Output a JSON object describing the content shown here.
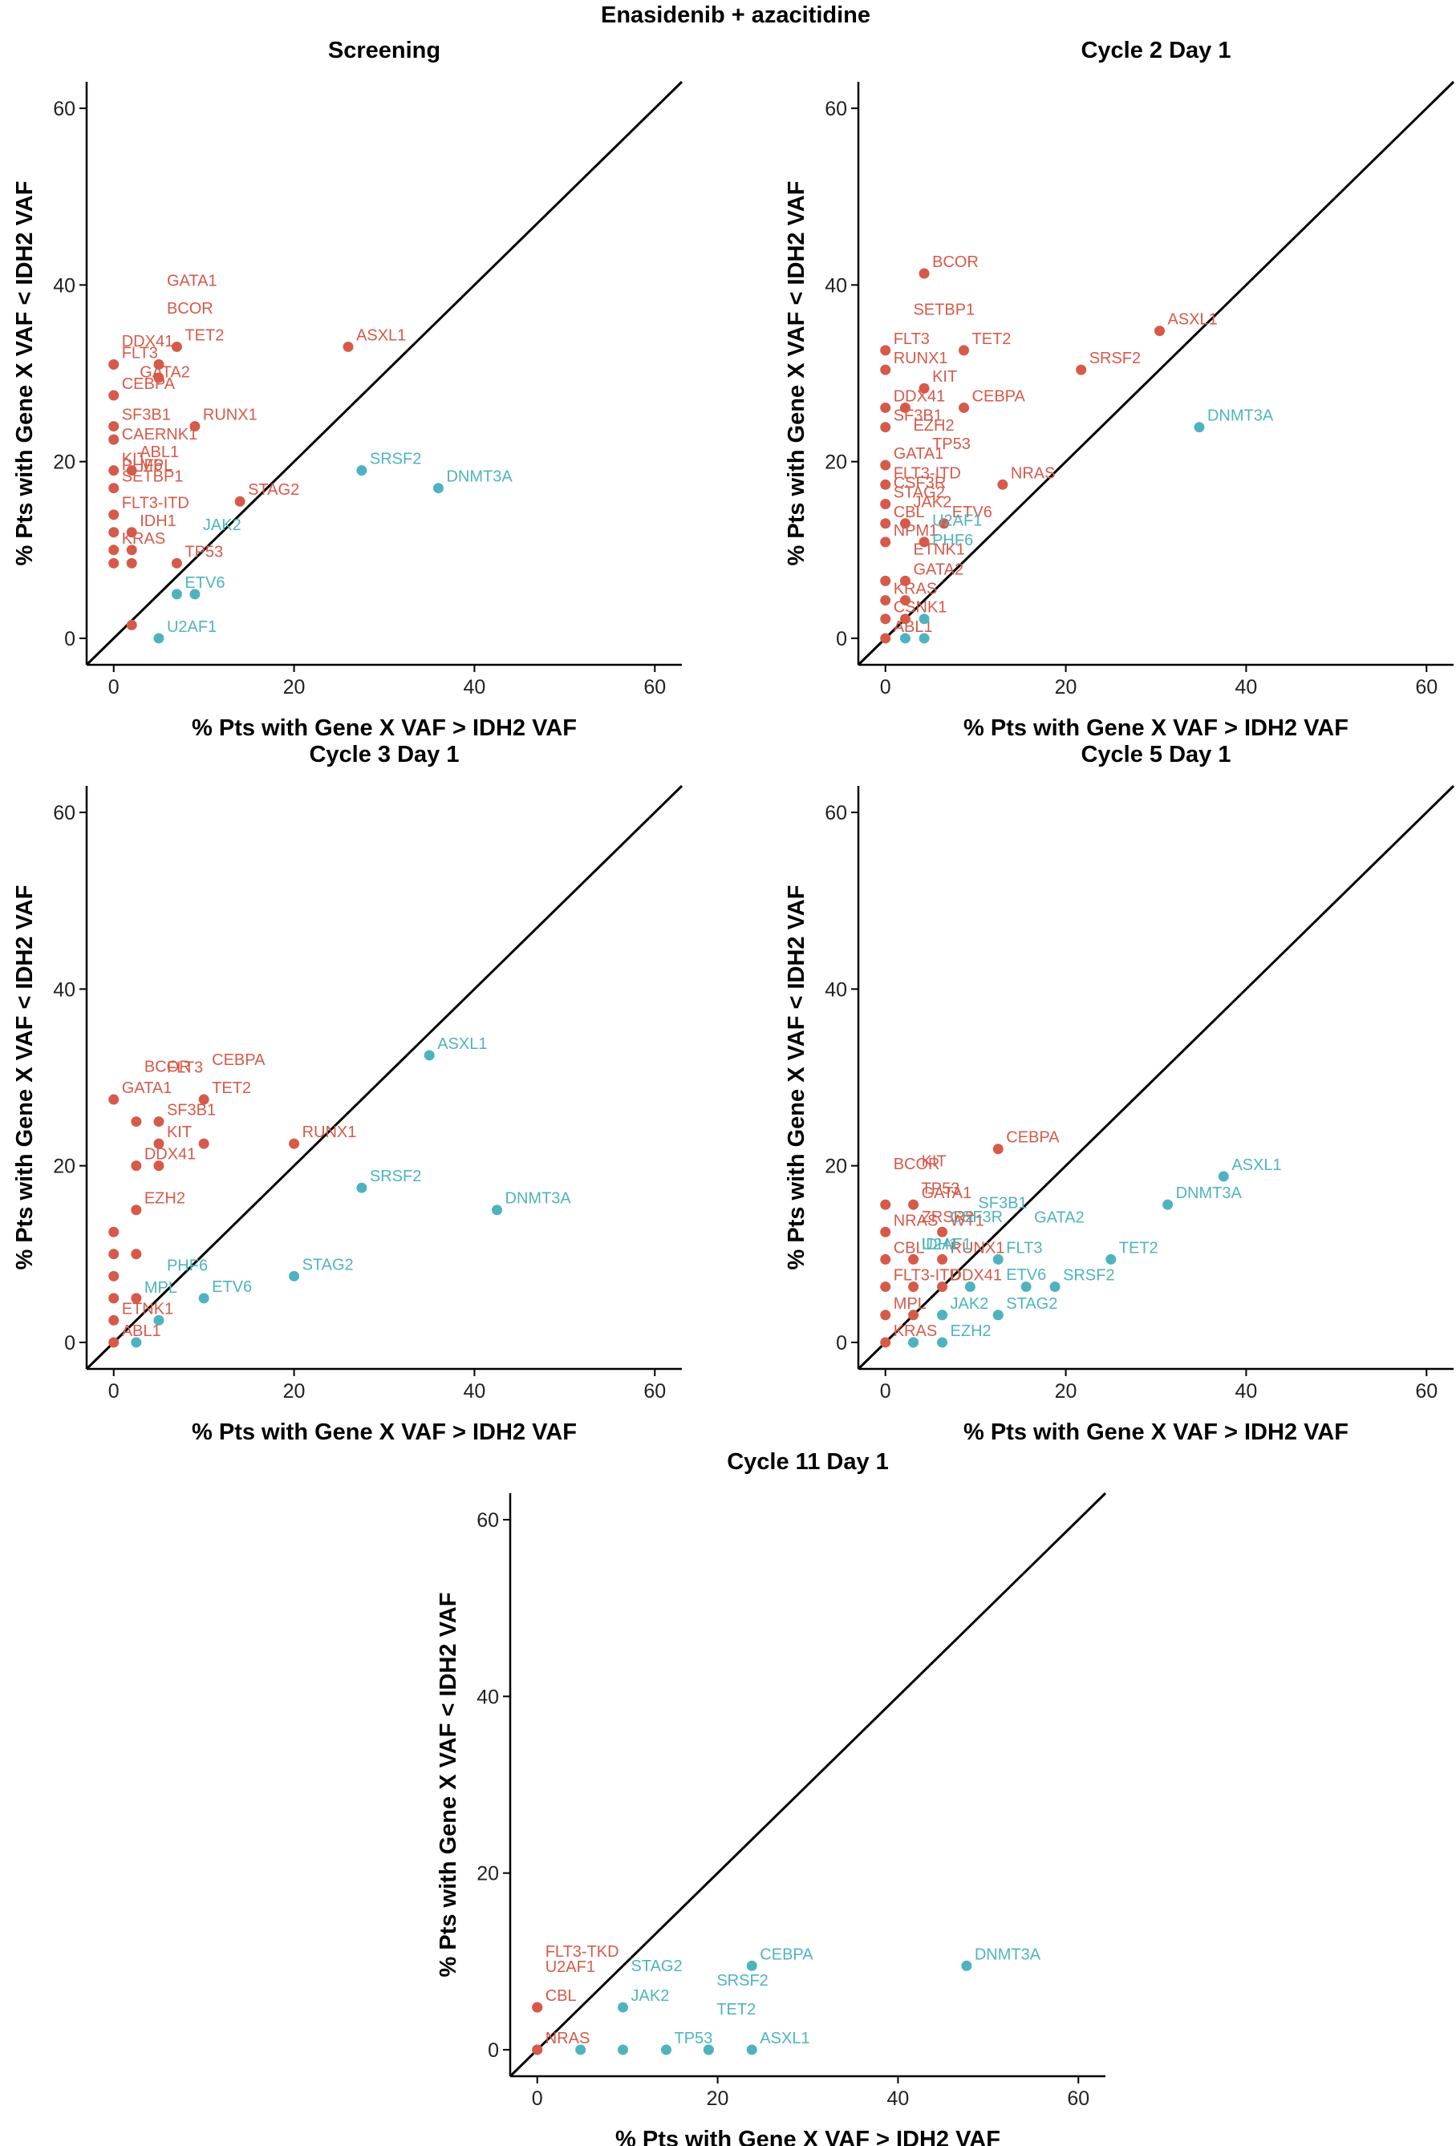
{
  "figure_title": "Enasidenib + azacitidine",
  "colors": {
    "above_diagonal": "#D65A4A",
    "below_diagonal": "#4FB3BF",
    "axis": "#000000",
    "diagonal": "#000000"
  },
  "chart_data": [
    {
      "type": "scatter",
      "title": "Screening",
      "xlabel": "% Pts with Gene X VAF > IDH2 VAF",
      "ylabel": "% Pts with Gene X VAF < IDH2 VAF",
      "xlim": [
        -3,
        63
      ],
      "ylim": [
        -3,
        63
      ],
      "xticks": [
        0,
        20,
        40,
        60
      ],
      "yticks": [
        0,
        20,
        40,
        60
      ],
      "reference_line": "y = x",
      "points": [
        {
          "label": "FLT3",
          "x": 0,
          "y": 31,
          "group": "above"
        },
        {
          "label": "TET2",
          "x": 7,
          "y": 33,
          "group": "above"
        },
        {
          "label": "CEBPA",
          "x": 0,
          "y": 27.5,
          "group": "above"
        },
        {
          "label": "BCOR",
          "x": 5,
          "y": 29.5,
          "group": "above"
        },
        {
          "label": "GATA1",
          "x": 5,
          "y": 31,
          "group": "above"
        },
        {
          "label": "ASXL1",
          "x": 26,
          "y": 33,
          "group": "above"
        },
        {
          "label": "RUNX1",
          "x": 9,
          "y": 24,
          "group": "above"
        },
        {
          "label": "SF3B1",
          "x": 0,
          "y": 24,
          "group": "above"
        },
        {
          "label": "DDX41",
          "x": 0,
          "y": 22.5,
          "group": "above"
        },
        {
          "label": "KIT",
          "x": 0,
          "y": 19,
          "group": "above"
        },
        {
          "label": "GATA2",
          "x": 2,
          "y": 19,
          "group": "above"
        },
        {
          "label": "STAG2",
          "x": 14,
          "y": 15.5,
          "group": "above"
        },
        {
          "label": "SETBP1",
          "x": 0,
          "y": 17,
          "group": "above"
        },
        {
          "label": "FLT3-ITD",
          "x": 0,
          "y": 14,
          "group": "above"
        },
        {
          "label": "IDH1",
          "x": 2,
          "y": 12,
          "group": "above"
        },
        {
          "label": "TP53",
          "x": 7,
          "y": 8.5,
          "group": "above"
        },
        {
          "label": "KRAS",
          "x": 0,
          "y": 10,
          "group": "above"
        },
        {
          "label": "ABL1",
          "x": 2,
          "y": 10,
          "group": "above"
        },
        {
          "label": "PHF6",
          "x": 0,
          "y": 8.5,
          "group": "above"
        },
        {
          "label": "MPL",
          "x": 2,
          "y": 8.5,
          "group": "above"
        },
        {
          "label": "CAERNK1",
          "x": 0,
          "y": 12,
          "group": "above"
        },
        {
          "label": "",
          "x": 2,
          "y": 1.5,
          "group": "above"
        },
        {
          "label": "SRSF2",
          "x": 27.5,
          "y": 19,
          "group": "below"
        },
        {
          "label": "DNMT3A",
          "x": 36,
          "y": 17,
          "group": "below"
        },
        {
          "label": "ETV6",
          "x": 7,
          "y": 5,
          "group": "below"
        },
        {
          "label": "JAK2",
          "x": 9,
          "y": 5,
          "group": "below"
        },
        {
          "label": "U2AF1",
          "x": 5,
          "y": 0,
          "group": "below"
        }
      ]
    },
    {
      "type": "scatter",
      "title": "Cycle 2 Day 1",
      "xlabel": "% Pts with Gene X VAF > IDH2 VAF",
      "ylabel": "% Pts with Gene X VAF < IDH2 VAF",
      "xlim": [
        -3,
        63
      ],
      "ylim": [
        -3,
        63
      ],
      "xticks": [
        0,
        20,
        40,
        60
      ],
      "yticks": [
        0,
        20,
        40,
        60
      ],
      "reference_line": "y = x",
      "points": [
        {
          "label": "BCOR",
          "x": 4.3,
          "y": 41.3,
          "group": "above"
        },
        {
          "label": "ASXL1",
          "x": 30.4,
          "y": 34.8,
          "group": "above"
        },
        {
          "label": "FLT3",
          "x": 0,
          "y": 32.6,
          "group": "above"
        },
        {
          "label": "TET2",
          "x": 8.7,
          "y": 32.6,
          "group": "above"
        },
        {
          "label": "SRSF2",
          "x": 21.7,
          "y": 30.4,
          "group": "above"
        },
        {
          "label": "RUNX1",
          "x": 0,
          "y": 30.4,
          "group": "above"
        },
        {
          "label": "KIT",
          "x": 4.3,
          "y": 28.3,
          "group": "above"
        },
        {
          "label": "DDX41",
          "x": 0,
          "y": 26.1,
          "group": "above"
        },
        {
          "label": "SETBP1",
          "x": 2.2,
          "y": 26.1,
          "group": "above"
        },
        {
          "label": "CEBPA",
          "x": 8.7,
          "y": 26.1,
          "group": "above"
        },
        {
          "label": "SF3B1",
          "x": 0,
          "y": 23.9,
          "group": "above"
        },
        {
          "label": "GATA1",
          "x": 0,
          "y": 19.6,
          "group": "above"
        },
        {
          "label": "FLT3-ITD",
          "x": 0,
          "y": 17.4,
          "group": "above"
        },
        {
          "label": "NRAS",
          "x": 13,
          "y": 17.4,
          "group": "above"
        },
        {
          "label": "STAG2",
          "x": 0,
          "y": 15.2,
          "group": "above"
        },
        {
          "label": "CBL",
          "x": 0,
          "y": 13,
          "group": "above"
        },
        {
          "label": "EZH2",
          "x": 2.2,
          "y": 13,
          "group": "above"
        },
        {
          "label": "NPM1",
          "x": 0,
          "y": 10.9,
          "group": "above"
        },
        {
          "label": "ETV6",
          "x": 6.5,
          "y": 13,
          "group": "above"
        },
        {
          "label": "TP53",
          "x": 4.3,
          "y": 10.9,
          "group": "above"
        },
        {
          "label": "GATA2",
          "x": 2.2,
          "y": 6.5,
          "group": "above"
        },
        {
          "label": "CSF3R",
          "x": 0,
          "y": 6.5,
          "group": "above"
        },
        {
          "label": "KRAS",
          "x": 0,
          "y": 4.3,
          "group": "above"
        },
        {
          "label": "JAK2",
          "x": 2.2,
          "y": 4.3,
          "group": "above"
        },
        {
          "label": "CSNK1",
          "x": 0,
          "y": 2.2,
          "group": "above"
        },
        {
          "label": "ETNK1",
          "x": 2.2,
          "y": 2.2,
          "group": "above"
        },
        {
          "label": "ABL1",
          "x": 0,
          "y": 0,
          "group": "above"
        },
        {
          "label": "DNMT3A",
          "x": 34.8,
          "y": 23.9,
          "group": "below"
        },
        {
          "label": "U2AF1",
          "x": 4.3,
          "y": 2.2,
          "group": "below"
        },
        {
          "label": "PHF6",
          "x": 4.3,
          "y": 0,
          "group": "below"
        },
        {
          "label": "",
          "x": 2.2,
          "y": 0,
          "group": "below"
        }
      ]
    },
    {
      "type": "scatter",
      "title": "Cycle 3 Day 1",
      "xlabel": "% Pts with Gene X VAF > IDH2 VAF",
      "ylabel": "% Pts with Gene X VAF < IDH2 VAF",
      "xlim": [
        -3,
        63
      ],
      "ylim": [
        -3,
        63
      ],
      "xticks": [
        0,
        20,
        40,
        60
      ],
      "yticks": [
        0,
        20,
        40,
        60
      ],
      "reference_line": "y = x",
      "points": [
        {
          "label": "GATA1",
          "x": 0,
          "y": 27.5,
          "group": "above"
        },
        {
          "label": "TET2",
          "x": 10,
          "y": 27.5,
          "group": "above"
        },
        {
          "label": "SF3B1",
          "x": 5,
          "y": 25,
          "group": "above"
        },
        {
          "label": "BCOR",
          "x": 2.5,
          "y": 25,
          "group": "above"
        },
        {
          "label": "KIT",
          "x": 5,
          "y": 22.5,
          "group": "above"
        },
        {
          "label": "CEBPA",
          "x": 10,
          "y": 22.5,
          "group": "above"
        },
        {
          "label": "RUNX1",
          "x": 20,
          "y": 22.5,
          "group": "above"
        },
        {
          "label": "DDX41",
          "x": 2.5,
          "y": 20,
          "group": "above"
        },
        {
          "label": "FLT3",
          "x": 5,
          "y": 20,
          "group": "above"
        },
        {
          "label": "EZH2",
          "x": 2.5,
          "y": 15,
          "group": "above"
        },
        {
          "label": "",
          "x": 0,
          "y": 12.5,
          "group": "above"
        },
        {
          "label": "",
          "x": 0,
          "y": 10,
          "group": "above"
        },
        {
          "label": "",
          "x": 2.5,
          "y": 10,
          "group": "above"
        },
        {
          "label": "",
          "x": 0,
          "y": 7.5,
          "group": "above"
        },
        {
          "label": "",
          "x": 0,
          "y": 5,
          "group": "above"
        },
        {
          "label": "",
          "x": 2.5,
          "y": 5,
          "group": "above"
        },
        {
          "label": "ETNK1",
          "x": 0,
          "y": 2.5,
          "group": "above"
        },
        {
          "label": "ABL1",
          "x": 0,
          "y": 0,
          "group": "above"
        },
        {
          "label": "ASXL1",
          "x": 35,
          "y": 32.5,
          "group": "below"
        },
        {
          "label": "SRSF2",
          "x": 27.5,
          "y": 17.5,
          "group": "below"
        },
        {
          "label": "DNMT3A",
          "x": 42.5,
          "y": 15,
          "group": "below"
        },
        {
          "label": "STAG2",
          "x": 20,
          "y": 7.5,
          "group": "below"
        },
        {
          "label": "ETV6",
          "x": 10,
          "y": 5,
          "group": "below"
        },
        {
          "label": "PHF6",
          "x": 5,
          "y": 2.5,
          "group": "below"
        },
        {
          "label": "MPL",
          "x": 2.5,
          "y": 0,
          "group": "below"
        }
      ]
    },
    {
      "type": "scatter",
      "title": "Cycle 5 Day 1",
      "xlabel": "% Pts with Gene X VAF > IDH2 VAF",
      "ylabel": "% Pts with Gene X VAF < IDH2 VAF",
      "xlim": [
        -3,
        63
      ],
      "ylim": [
        -3,
        63
      ],
      "xticks": [
        0,
        20,
        40,
        60
      ],
      "yticks": [
        0,
        20,
        40,
        60
      ],
      "reference_line": "y = x",
      "points": [
        {
          "label": "CEBPA",
          "x": 12.5,
          "y": 21.9,
          "group": "above"
        },
        {
          "label": "GATA1",
          "x": 3.1,
          "y": 15.6,
          "group": "above"
        },
        {
          "label": "BCOR",
          "x": 0,
          "y": 15.6,
          "group": "above"
        },
        {
          "label": "WT1",
          "x": 6.3,
          "y": 12.5,
          "group": "above"
        },
        {
          "label": "NRAS",
          "x": 0,
          "y": 12.5,
          "group": "above"
        },
        {
          "label": "RUNX1",
          "x": 6.3,
          "y": 9.4,
          "group": "above"
        },
        {
          "label": "CBL",
          "x": 0,
          "y": 9.4,
          "group": "above"
        },
        {
          "label": "KIT",
          "x": 3.1,
          "y": 9.4,
          "group": "above"
        },
        {
          "label": "DDX41",
          "x": 6.3,
          "y": 6.3,
          "group": "above"
        },
        {
          "label": "FLT3-ITD",
          "x": 0,
          "y": 6.3,
          "group": "above"
        },
        {
          "label": "TP53",
          "x": 3.1,
          "y": 6.3,
          "group": "above"
        },
        {
          "label": "MPL",
          "x": 0,
          "y": 3.1,
          "group": "above"
        },
        {
          "label": "ZRSR2",
          "x": 3.1,
          "y": 3.1,
          "group": "above"
        },
        {
          "label": "KRAS",
          "x": 0,
          "y": 0,
          "group": "above"
        },
        {
          "label": "ASXL1",
          "x": 37.5,
          "y": 18.8,
          "group": "below"
        },
        {
          "label": "DNMT3A",
          "x": 31.3,
          "y": 15.6,
          "group": "below"
        },
        {
          "label": "FLT3",
          "x": 12.5,
          "y": 9.4,
          "group": "below"
        },
        {
          "label": "TET2",
          "x": 25,
          "y": 9.4,
          "group": "below"
        },
        {
          "label": "SF3B1",
          "x": 9.4,
          "y": 6.3,
          "group": "below"
        },
        {
          "label": "SRSF2",
          "x": 18.8,
          "y": 6.3,
          "group": "below"
        },
        {
          "label": "JAK2",
          "x": 6.3,
          "y": 3.1,
          "group": "below"
        },
        {
          "label": "GATA2",
          "x": 15.6,
          "y": 6.3,
          "group": "below"
        },
        {
          "label": "STAG2",
          "x": 12.5,
          "y": 3.1,
          "group": "below"
        },
        {
          "label": "U2AF1",
          "x": 3.1,
          "y": 0,
          "group": "below"
        },
        {
          "label": "CSF3R",
          "x": 6.3,
          "y": 3.1,
          "group": "below"
        },
        {
          "label": "ETV6",
          "x": 12.5,
          "y": 3.1,
          "group": "below"
        },
        {
          "label": "IDH1",
          "x": 3.1,
          "y": 0,
          "group": "below"
        },
        {
          "label": "EZH2",
          "x": 6.3,
          "y": 0,
          "group": "below"
        }
      ]
    },
    {
      "type": "scatter",
      "title": "Cycle 11 Day 1",
      "xlabel": "% Pts with Gene X VAF > IDH2 VAF",
      "ylabel": "% Pts with Gene X VAF < IDH2 VAF",
      "xlim": [
        -3,
        63
      ],
      "ylim": [
        -3,
        63
      ],
      "xticks": [
        0,
        20,
        40,
        60
      ],
      "yticks": [
        0,
        20,
        40,
        60
      ],
      "reference_line": "y = x",
      "points": [
        {
          "label": "CBL",
          "x": 0,
          "y": 4.8,
          "group": "above"
        },
        {
          "label": "U2AF1",
          "x": 0,
          "y": 4.8,
          "group": "above"
        },
        {
          "label": "NRAS",
          "x": 0,
          "y": 0,
          "group": "above"
        },
        {
          "label": "FLT3-TKD",
          "x": 0,
          "y": 0,
          "group": "above"
        },
        {
          "label": "DNMT3A",
          "x": 47.6,
          "y": 9.5,
          "group": "below"
        },
        {
          "label": "CEBPA",
          "x": 23.8,
          "y": 9.5,
          "group": "below"
        },
        {
          "label": "JAK2",
          "x": 9.5,
          "y": 4.8,
          "group": "below"
        },
        {
          "label": "TP53",
          "x": 14.3,
          "y": 0,
          "group": "below"
        },
        {
          "label": "TET2",
          "x": 19,
          "y": 0,
          "group": "below"
        },
        {
          "label": "ASXL1",
          "x": 23.8,
          "y": 0,
          "group": "below"
        },
        {
          "label": "STAG2",
          "x": 9.5,
          "y": 0,
          "group": "below"
        },
        {
          "label": "SRSF2",
          "x": 19,
          "y": 0,
          "group": "below"
        },
        {
          "label": "",
          "x": 4.8,
          "y": 0,
          "group": "below"
        }
      ]
    }
  ]
}
